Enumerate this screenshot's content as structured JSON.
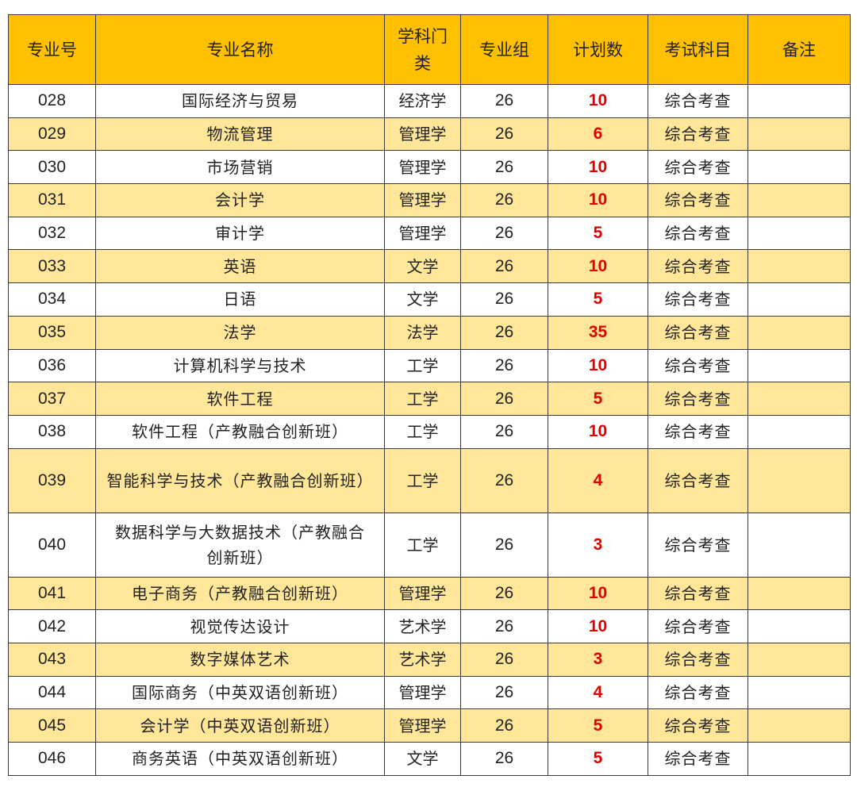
{
  "headers": [
    "专业号",
    "专业名称",
    "学科门类",
    "专业组",
    "计划数",
    "考试科目",
    "备注"
  ],
  "rows": [
    {
      "code": "028",
      "name": "国际经济与贸易",
      "category": "经济学",
      "group": "26",
      "plan": "10",
      "exam": "综合考查",
      "note": ""
    },
    {
      "code": "029",
      "name": "物流管理",
      "category": "管理学",
      "group": "26",
      "plan": "6",
      "exam": "综合考查",
      "note": ""
    },
    {
      "code": "030",
      "name": "市场营销",
      "category": "管理学",
      "group": "26",
      "plan": "10",
      "exam": "综合考查",
      "note": ""
    },
    {
      "code": "031",
      "name": "会计学",
      "category": "管理学",
      "group": "26",
      "plan": "10",
      "exam": "综合考查",
      "note": ""
    },
    {
      "code": "032",
      "name": "审计学",
      "category": "管理学",
      "group": "26",
      "plan": "5",
      "exam": "综合考查",
      "note": ""
    },
    {
      "code": "033",
      "name": "英语",
      "category": "文学",
      "group": "26",
      "plan": "10",
      "exam": "综合考查",
      "note": ""
    },
    {
      "code": "034",
      "name": "日语",
      "category": "文学",
      "group": "26",
      "plan": "5",
      "exam": "综合考查",
      "note": ""
    },
    {
      "code": "035",
      "name": "法学",
      "category": "法学",
      "group": "26",
      "plan": "35",
      "exam": "综合考查",
      "note": ""
    },
    {
      "code": "036",
      "name": "计算机科学与技术",
      "category": "工学",
      "group": "26",
      "plan": "10",
      "exam": "综合考查",
      "note": ""
    },
    {
      "code": "037",
      "name": "软件工程",
      "category": "工学",
      "group": "26",
      "plan": "5",
      "exam": "综合考查",
      "note": ""
    },
    {
      "code": "038",
      "name": "软件工程（产教融合创新班）",
      "category": "工学",
      "group": "26",
      "plan": "10",
      "exam": "综合考查",
      "note": ""
    },
    {
      "code": "039",
      "name": "智能科学与技术（产教融合创新班）",
      "category": "工学",
      "group": "26",
      "plan": "4",
      "exam": "综合考查",
      "note": ""
    },
    {
      "code": "040",
      "name": "数据科学与大数据技术（产教融合创新班）",
      "category": "工学",
      "group": "26",
      "plan": "3",
      "exam": "综合考查",
      "note": ""
    },
    {
      "code": "041",
      "name": "电子商务（产教融合创新班）",
      "category": "管理学",
      "group": "26",
      "plan": "10",
      "exam": "综合考查",
      "note": ""
    },
    {
      "code": "042",
      "name": "视觉传达设计",
      "category": "艺术学",
      "group": "26",
      "plan": "10",
      "exam": "综合考查",
      "note": ""
    },
    {
      "code": "043",
      "name": "数字媒体艺术",
      "category": "艺术学",
      "group": "26",
      "plan": "3",
      "exam": "综合考查",
      "note": ""
    },
    {
      "code": "044",
      "name": "国际商务（中英双语创新班）",
      "category": "管理学",
      "group": "26",
      "plan": "4",
      "exam": "综合考查",
      "note": ""
    },
    {
      "code": "045",
      "name": "会计学（中英双语创新班）",
      "category": "管理学",
      "group": "26",
      "plan": "5",
      "exam": "综合考查",
      "note": ""
    },
    {
      "code": "046",
      "name": "商务英语（中英双语创新班）",
      "category": "文学",
      "group": "26",
      "plan": "5",
      "exam": "综合考查",
      "note": ""
    }
  ],
  "colors": {
    "header_bg": "#ffc000",
    "alt_row_bg": "#ffe699",
    "plan_text": "#e00000"
  }
}
